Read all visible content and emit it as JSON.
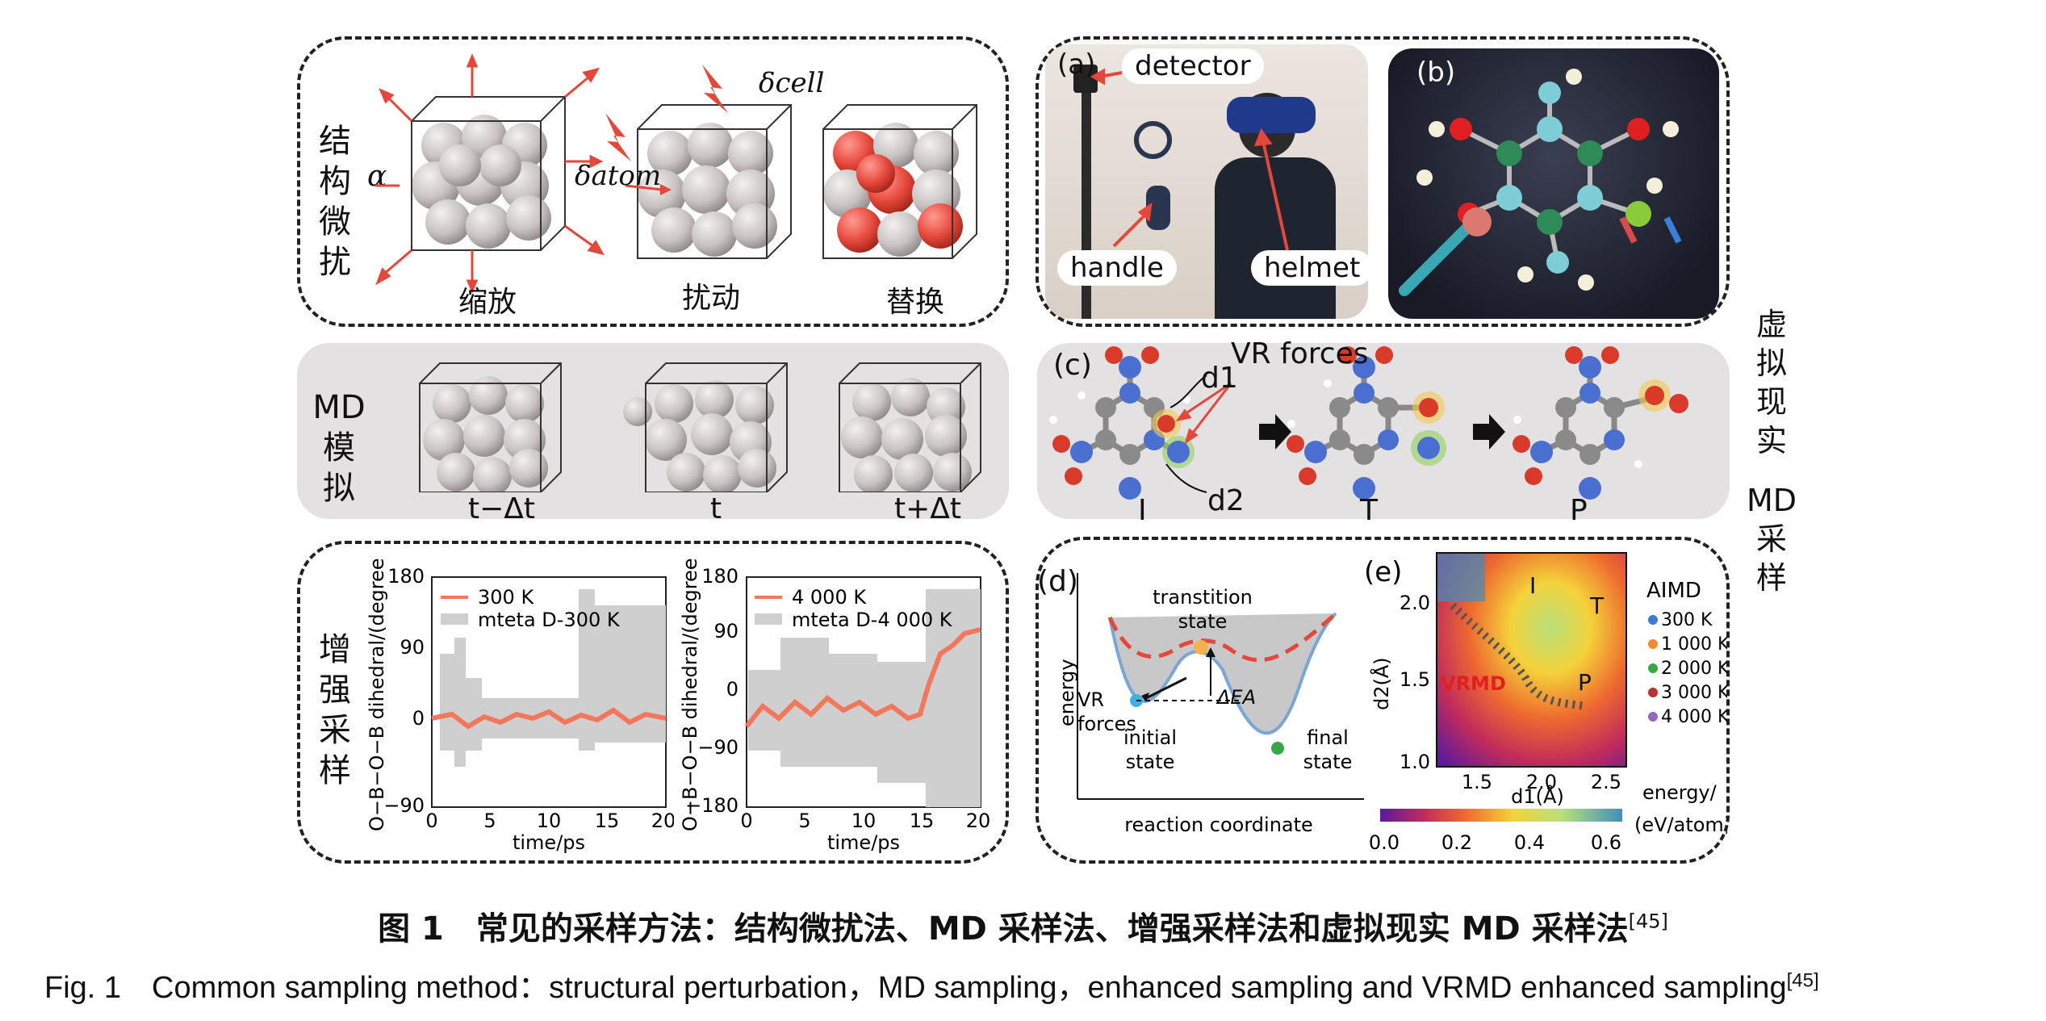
{
  "colors": {
    "accent_red": "#e5473a",
    "trace_orange": "#f3775c",
    "gray_panel": "#e3e1e1"
  },
  "perturb": {
    "title": "结构微扰",
    "alpha": "α",
    "delta_cell": "δcell",
    "delta_atom": "δatom",
    "scale_label": "缩放",
    "perturb_label": "扰动",
    "replace_label": "替换"
  },
  "md": {
    "title": [
      "MD",
      "模",
      "拟"
    ],
    "t_minus": "t−Δt",
    "t": "t",
    "t_plus": "t+Δt"
  },
  "enhanced": {
    "title": "增强采样",
    "plot1": {
      "ylabel": "O−B−O−B dihedral/(degree)",
      "xlabel": "time/ps",
      "legend": [
        "300 K",
        "mteta D-300 K"
      ],
      "yticks": [
        "180",
        "90",
        "0",
        "−90"
      ],
      "xticks": [
        "0",
        "5",
        "10",
        "15",
        "20"
      ]
    },
    "plot2": {
      "ylabel": "O−B−O−B dihedral/(degree)",
      "xlabel": "time/ps",
      "legend": [
        "4 000 K",
        "mteta D-4 000 K"
      ],
      "yticks": [
        "180",
        "90",
        "0",
        "−90",
        "−180"
      ],
      "xticks": [
        "0",
        "5",
        "10",
        "15",
        "20"
      ]
    }
  },
  "vr": {
    "title": [
      "虚",
      "拟",
      "现",
      "实",
      "MD",
      "采",
      "样"
    ],
    "a_label": "(a)",
    "detector": "detector",
    "handle": "handle",
    "helmet": "helmet",
    "b_label": "(b)",
    "c_label": "(c)",
    "vr_forces": "VR forces",
    "d1": "d1",
    "d2": "d2",
    "state_I": "I",
    "state_T": "T",
    "state_P": "P",
    "d_label": "(d)",
    "transition_state": [
      "transtition",
      "state"
    ],
    "vr_forces_d": [
      "VR",
      "forces"
    ],
    "initial_state": [
      "initial",
      "state"
    ],
    "final_state": [
      "final",
      "state"
    ],
    "energy": "energy",
    "reaction_coordinate": "reaction coordinate",
    "delta_e": "ΔEA",
    "e_label": "(e)",
    "d2_axis": "d2(Å)",
    "d1_axis": "d1(Å)",
    "yticks": [
      "2.0",
      "1.5",
      "1.0"
    ],
    "xticks": [
      "1.5",
      "2.0",
      "2.5"
    ],
    "vrmd": "VRMD",
    "aimd": "AIMD",
    "aimd_legend": [
      {
        "label": "300 K",
        "color": "#3b7bd6"
      },
      {
        "label": "1 000 K",
        "color": "#f28a2e"
      },
      {
        "label": "2 000 K",
        "color": "#36a845"
      },
      {
        "label": "3 000 K",
        "color": "#b5352c"
      },
      {
        "label": "4 000 K",
        "color": "#9467bd"
      }
    ],
    "energy_unit": [
      "energy/",
      "(eV/atom)"
    ],
    "cbar_ticks": [
      "0.0",
      "0.2",
      "0.4",
      "0.6"
    ]
  },
  "caption": {
    "cn": "图 1　常见的采样方法：结构微扰法、MD 采样法、增强采样法和虚拟现实 MD 采样法",
    "cn_ref": "[45]",
    "en": "Fig. 1　Common sampling method：structural perturbation，MD sampling，enhanced sampling and VRMD enhanced sampling",
    "en_ref": "[45]"
  }
}
